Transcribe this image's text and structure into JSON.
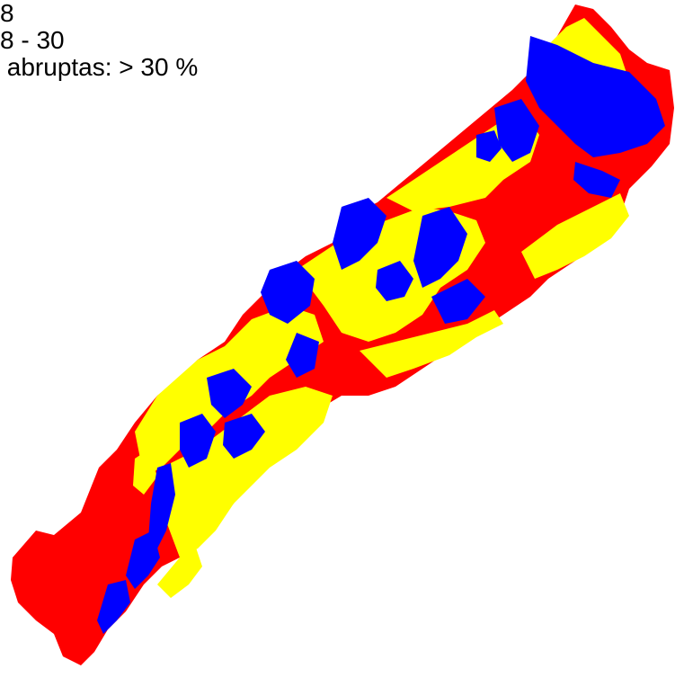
{
  "legend": {
    "entries": [
      {
        "label": "8",
        "color": "#ff0000"
      },
      {
        "label": "8 - 30",
        "color": "#ffff00"
      },
      {
        "label": " abruptas: > 30 %",
        "color": "#0000ff"
      }
    ]
  },
  "map": {
    "background": "#ffffff",
    "classes": [
      {
        "name": "slope-low",
        "color": "#ff0000"
      },
      {
        "name": "slope-mid",
        "color": "#ffff00"
      },
      {
        "name": "slope-steep",
        "color": "#0000ff"
      }
    ]
  }
}
